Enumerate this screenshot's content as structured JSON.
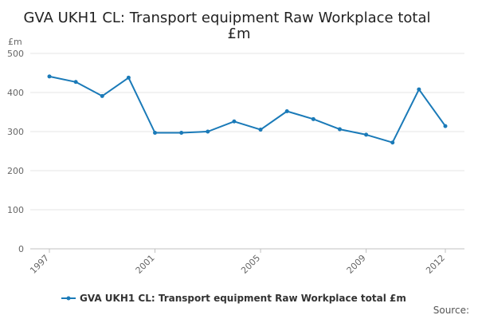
{
  "chart_data": {
    "type": "line",
    "title_line1": "GVA UKH1 CL: Transport equipment Raw Workplace total",
    "title_line2": "£m",
    "ylabel": "£m",
    "ylim": [
      0,
      500
    ],
    "yticks": [
      0,
      100,
      200,
      300,
      400,
      500
    ],
    "xlim": [
      1997,
      2012
    ],
    "xticks": [
      1997,
      2001,
      2005,
      2009,
      2012
    ],
    "grid": true,
    "legend_position": "bottom",
    "series": [
      {
        "name": "GVA UKH1 CL: Transport equipment Raw Workplace total £m",
        "color": "#1a7ab8",
        "x": [
          1997,
          1998,
          1999,
          2000,
          2001,
          2002,
          2003,
          2004,
          2005,
          2006,
          2007,
          2008,
          2009,
          2010,
          2011,
          2012
        ],
        "y": [
          441,
          427,
          391,
          438,
          297,
          297,
          300,
          326,
          305,
          352,
          332,
          306,
          292,
          272,
          408,
          314
        ]
      }
    ],
    "source": "Source:"
  }
}
